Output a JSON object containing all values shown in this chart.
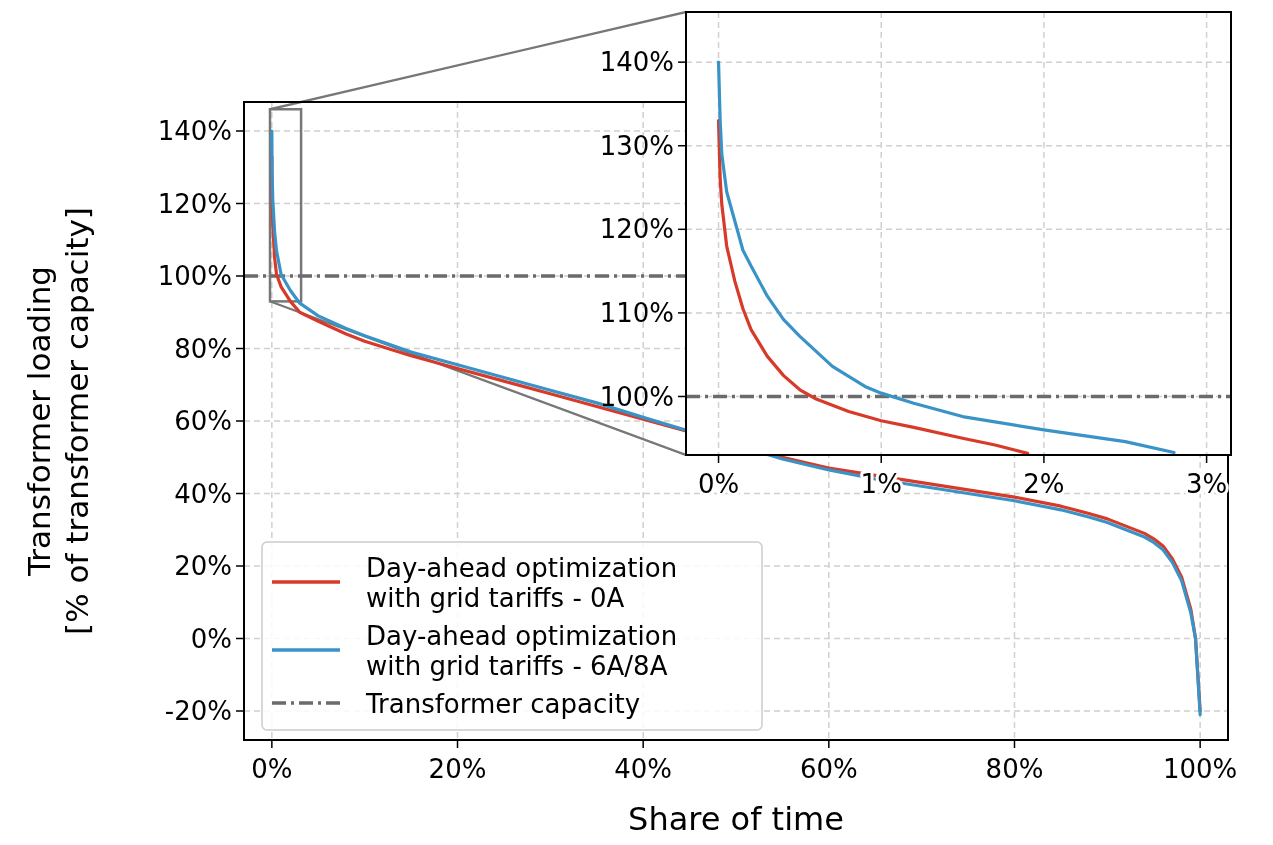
{
  "chart_data": [
    {
      "type": "line",
      "xlabel": "Share of time",
      "ylabel": "Transformer loading\n[% of transformer capacity]",
      "xlim": [
        -3,
        103
      ],
      "ylim": [
        -28,
        148
      ],
      "xticks": [
        {
          "value": 0,
          "label": "0%"
        },
        {
          "value": 20,
          "label": "20%"
        },
        {
          "value": 40,
          "label": "40%"
        },
        {
          "value": 60,
          "label": "60%"
        },
        {
          "value": 80,
          "label": "80%"
        },
        {
          "value": 100,
          "label": "100%"
        }
      ],
      "yticks": [
        {
          "value": -20,
          "label": "-20%"
        },
        {
          "value": 0,
          "label": "0%"
        },
        {
          "value": 20,
          "label": "20%"
        },
        {
          "value": 40,
          "label": "40%"
        },
        {
          "value": 60,
          "label": "60%"
        },
        {
          "value": 80,
          "label": "80%"
        },
        {
          "value": 100,
          "label": "100%"
        },
        {
          "value": 120,
          "label": "120%"
        },
        {
          "value": 140,
          "label": "140%"
        }
      ],
      "grid": true,
      "legend": "bottom left",
      "line_style": "solid",
      "marker": "none",
      "ref_lines": [
        {
          "axis": "y",
          "value": 100,
          "label": "Transformer capacity",
          "color": "#6b6b6b",
          "line_style": "dashdot"
        }
      ],
      "series": [
        {
          "name": "Day-ahead optimization\nwith grid tariffs - 0A",
          "color": "#d83a2a",
          "x": [
            0,
            0.02,
            0.1,
            0.3,
            0.5,
            1,
            2,
            3,
            5,
            8,
            10,
            15,
            20,
            25,
            30,
            35,
            40,
            45,
            50,
            55,
            60,
            65,
            70,
            75,
            80,
            85,
            88,
            90,
            92,
            94,
            95,
            96,
            97,
            98,
            99,
            99.5,
            100
          ],
          "values": [
            133,
            123,
            114,
            105,
            100.5,
            97,
            93,
            90,
            87.5,
            84,
            82,
            78,
            74.5,
            71,
            67.5,
            64,
            60.5,
            null,
            null,
            50,
            47,
            45,
            43,
            41,
            39,
            36.5,
            34.5,
            33,
            31,
            29,
            27.5,
            25.5,
            22,
            17,
            8,
            0,
            -20
          ]
        },
        {
          "name": "Day-ahead optimization\nwith grid tariffs - 6A/8A",
          "color": "#3a93c7",
          "x": [
            0,
            0.02,
            0.1,
            0.3,
            0.5,
            1,
            2,
            3,
            5,
            8,
            10,
            15,
            20,
            25,
            30,
            35,
            40,
            45,
            50,
            55,
            60,
            65,
            70,
            75,
            80,
            85,
            88,
            90,
            92,
            94,
            95,
            96,
            97,
            98,
            99,
            99.5,
            100
          ],
          "values": [
            140,
            129,
            121,
            112,
            107,
            100.4,
            96,
            92.5,
            89,
            85.5,
            83.5,
            79,
            75.5,
            72,
            68.5,
            65,
            61,
            null,
            null,
            49.5,
            46.5,
            44,
            42,
            40,
            38,
            35.5,
            33.5,
            32,
            30,
            28,
            26.5,
            24.5,
            21,
            16,
            7,
            0,
            -21
          ]
        }
      ]
    },
    {
      "type": "line",
      "xlim": [
        -0.2,
        3.15
      ],
      "ylim": [
        93,
        146
      ],
      "xticks": [
        {
          "value": 0,
          "label": "0%"
        },
        {
          "value": 1,
          "label": "1%"
        },
        {
          "value": 2,
          "label": "2%"
        },
        {
          "value": 3,
          "label": "3%"
        }
      ],
      "yticks": [
        {
          "value": 100,
          "label": "100%"
        },
        {
          "value": 110,
          "label": "110%"
        },
        {
          "value": 120,
          "label": "120%"
        },
        {
          "value": 130,
          "label": "130%"
        },
        {
          "value": 140,
          "label": "140%"
        }
      ],
      "grid": true,
      "line_style": "solid",
      "marker": "none",
      "ref_lines": [
        {
          "axis": "y",
          "value": 100,
          "color": "#6b6b6b",
          "line_style": "dashdot"
        }
      ],
      "series": [
        {
          "color": "#d83a2a",
          "x": [
            0,
            0.01,
            0.02,
            0.05,
            0.1,
            0.15,
            0.2,
            0.3,
            0.4,
            0.5,
            0.6,
            0.8,
            1,
            1.2,
            1.5,
            1.7,
            1.9
          ],
          "values": [
            133,
            126,
            123,
            118,
            113.8,
            110.5,
            108,
            104.8,
            102.5,
            100.8,
            99.7,
            98.2,
            97.1,
            96.3,
            95,
            94.2,
            93.2
          ]
        },
        {
          "color": "#3a93c7",
          "x": [
            0,
            0.01,
            0.02,
            0.05,
            0.1,
            0.15,
            0.2,
            0.3,
            0.4,
            0.5,
            0.7,
            0.9,
            1,
            1.2,
            1.5,
            2,
            2.5,
            2.8
          ],
          "values": [
            140,
            133,
            129,
            124.5,
            121,
            117.5,
            115.6,
            112,
            109.2,
            107.2,
            103.6,
            101.2,
            100.4,
            99.2,
            97.6,
            96,
            94.6,
            93.3
          ]
        }
      ]
    }
  ]
}
